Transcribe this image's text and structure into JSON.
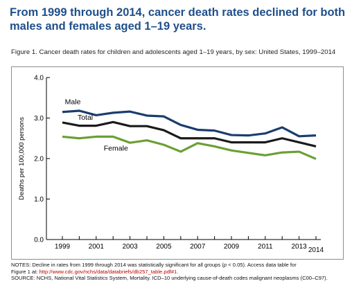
{
  "headline": "From 1999 through 2014, cancer death rates declined for both males and females aged 1–19 years.",
  "figure_caption": "Figure 1. Cancer death rates for children and adolescents aged 1–19 years, by sex: United States, 1999–2014",
  "notes": {
    "line1_a": "NOTES: Decline in rates from 1999 through 2014 was statistically significant for all groups (",
    "line1_p": "p",
    "line1_b": " < 0.05). Access data table for",
    "line2_a": "Figure 1 at: ",
    "line2_url": "http://www.cdc.gov/nchs/data/databriefs/db257_table.pdf#1.",
    "line3": "SOURCE: NCHS, National Vital Statistics System, Mortality. ICD–10 underlying cause-of-death codes malignant neoplasms (C00–C97)."
  },
  "chart_data": {
    "type": "line",
    "ylabel": "Deaths per 100,000 persons",
    "xlabel": "",
    "ylim": [
      0,
      4
    ],
    "yticks": [
      "0.0",
      "1.0",
      "2.0",
      "3.0",
      "4.0"
    ],
    "x": [
      1999,
      2000,
      2001,
      2002,
      2003,
      2004,
      2005,
      2006,
      2007,
      2008,
      2009,
      2010,
      2011,
      2012,
      2013,
      2014
    ],
    "xtick_labels": [
      "1999",
      "2001",
      "2003",
      "2005",
      "2007",
      "2009",
      "2011",
      "2013",
      "2014"
    ],
    "grid": false,
    "series": [
      {
        "name": "Male",
        "color": "#1b3d6e",
        "values": [
          3.15,
          3.18,
          3.07,
          3.13,
          3.16,
          3.06,
          3.04,
          2.83,
          2.71,
          2.69,
          2.58,
          2.57,
          2.62,
          2.77,
          2.55,
          2.57
        ]
      },
      {
        "name": "Total",
        "color": "#1a1a1a",
        "values": [
          2.89,
          2.81,
          2.81,
          2.9,
          2.8,
          2.8,
          2.7,
          2.5,
          2.5,
          2.5,
          2.4,
          2.4,
          2.4,
          2.5,
          2.4,
          2.3
        ]
      },
      {
        "name": "Female",
        "color": "#6aa033",
        "values": [
          2.54,
          2.5,
          2.54,
          2.54,
          2.39,
          2.45,
          2.34,
          2.17,
          2.38,
          2.3,
          2.2,
          2.14,
          2.08,
          2.15,
          2.17,
          1.99
        ]
      }
    ]
  }
}
